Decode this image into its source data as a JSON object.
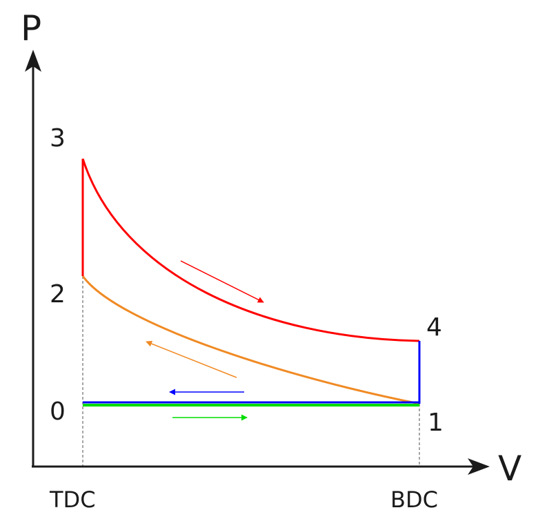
{
  "diagram": {
    "axes": {
      "y_title": "P",
      "x_title": "V",
      "x_ticks": [
        "TDC",
        "BDC"
      ]
    },
    "points": [
      "0",
      "1",
      "2",
      "3",
      "4"
    ],
    "colors": {
      "expansion": "#ff0000",
      "compression": "#f08a24",
      "exhaust": "#0000ff",
      "intake": "#00dd00",
      "axis": "#1a1a1a",
      "guide": "#888888"
    }
  }
}
